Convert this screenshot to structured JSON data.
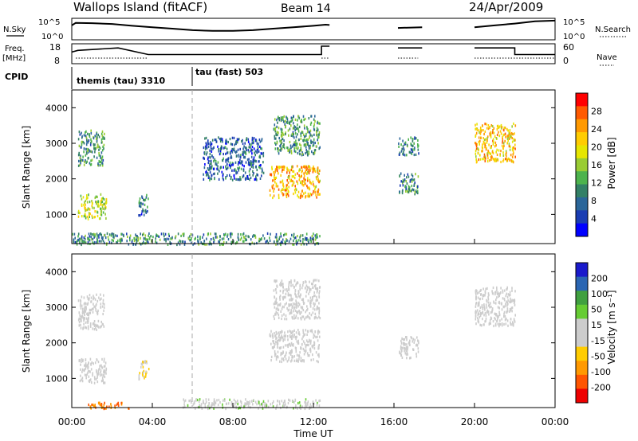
{
  "header": {
    "station": "Wallops Island (fitACF)",
    "beam": "Beam 14",
    "date": "24/Apr/2009"
  },
  "panels": {
    "nsky_label": "N.Sky",
    "nsky_ticks": [
      "10^5",
      "10^0"
    ],
    "nsearch_label": "N.Search",
    "nsearch_ticks": [
      "10^5",
      "10^0"
    ],
    "freq_label_line1": "Freq.",
    "freq_label_line2": "[MHz]",
    "freq_ticks": [
      "18",
      "8"
    ],
    "nave_label": "Nave",
    "nave_ticks": [
      "60",
      "0"
    ],
    "cpid_label": "CPID",
    "cpid_segments": [
      {
        "label": "themis (tau) 3310",
        "start_h": 0,
        "end_h": 6.0
      },
      {
        "label": "tau (fast) 503",
        "start_h": 6.0,
        "end_h": 24
      }
    ]
  },
  "axes": {
    "y_label": "Slant Range [km]",
    "y_ticks": [
      1000,
      2000,
      3000,
      4000
    ],
    "x_label": "Time UT",
    "x_ticks": [
      "00:00",
      "04:00",
      "08:00",
      "12:00",
      "16:00",
      "20:00",
      "00:00"
    ]
  },
  "colorbars": {
    "power": {
      "label": "Power [dB]",
      "ticks": [
        "28",
        "24",
        "20",
        "16",
        "12",
        "8",
        "4"
      ],
      "colors": [
        "#ff0000",
        "#ff5a00",
        "#ff9900",
        "#ffcc00",
        "#e6e600",
        "#99cc33",
        "#4db34d",
        "#338066",
        "#2b6699",
        "#1a3db3",
        "#0000ff"
      ]
    },
    "velocity": {
      "label": "Velocity [m s⁻¹]",
      "ticks": [
        "200",
        "100",
        "50",
        "15",
        "-15",
        "-50",
        "-100",
        "-200"
      ],
      "colors": [
        "#1a1acc",
        "#2b66b3",
        "#40a040",
        "#66cc33",
        "#cccccc",
        "#cccccc",
        "#ffcc00",
        "#ff9900",
        "#ff5500",
        "#ee0000"
      ]
    }
  },
  "chart_data": [
    {
      "type": "line",
      "name": "N.Sky",
      "x_hours": [
        0,
        0.2,
        1,
        2,
        3,
        4,
        5,
        6,
        7,
        8,
        9,
        10,
        11,
        12,
        12.6,
        12.8,
        16.2,
        17.4,
        20.0,
        21,
        22,
        23,
        24
      ],
      "values_log10": [
        3.5,
        4.2,
        4.1,
        3.9,
        3.4,
        3.0,
        2.6,
        2.2,
        2.0,
        2.0,
        2.2,
        2.6,
        3.0,
        3.4,
        3.7,
        3.6,
        2.8,
        3.0,
        3.0,
        3.5,
        4.0,
        4.6,
        4.8
      ]
    },
    {
      "type": "line",
      "name": "Freq.",
      "x_hours": [
        0,
        0.3,
        2.3,
        3.8,
        3.8,
        12.4,
        12.4,
        12.8,
        16.2,
        17.4,
        20.0,
        22.0,
        22.0,
        24
      ],
      "values_mhz": [
        14,
        15,
        16.5,
        12.5,
        12.5,
        12.5,
        17.5,
        17.5,
        16.5,
        16.5,
        16.5,
        16.5,
        12.5,
        12.5
      ]
    },
    {
      "type": "heatmap",
      "name": "Power",
      "x_range_hours": [
        0,
        24
      ],
      "y_range_km": [
        180,
        4500
      ],
      "zlim_db": [
        0,
        30
      ],
      "data_gaps_hours": [
        [
          12.8,
          16.2
        ],
        [
          17.4,
          20.0
        ]
      ],
      "regions": [
        {
          "t": [
            0.3,
            1.7
          ],
          "r": [
            900,
            1600
          ],
          "db": 16
        },
        {
          "t": [
            0.3,
            1.6
          ],
          "r": [
            2400,
            3400
          ],
          "db": 10
        },
        {
          "t": [
            3.3,
            3.8
          ],
          "r": [
            1000,
            1600
          ],
          "db": 7
        },
        {
          "t": [
            6.5,
            9.5
          ],
          "r": [
            2000,
            3200
          ],
          "db": 6
        },
        {
          "t": [
            9.8,
            12.3
          ],
          "r": [
            1500,
            2400
          ],
          "db": 22
        },
        {
          "t": [
            10.0,
            12.3
          ],
          "r": [
            2700,
            3800
          ],
          "db": 10
        },
        {
          "t": [
            16.2,
            17.2
          ],
          "r": [
            1600,
            2200
          ],
          "db": 9
        },
        {
          "t": [
            16.2,
            17.2
          ],
          "r": [
            2700,
            3200
          ],
          "db": 8
        },
        {
          "t": [
            20.0,
            22.0
          ],
          "r": [
            2500,
            3600
          ],
          "db": 21
        },
        {
          "t": [
            0.0,
            12.3
          ],
          "r": [
            180,
            500
          ],
          "db": 9
        }
      ]
    },
    {
      "type": "heatmap",
      "name": "Velocity",
      "x_range_hours": [
        0,
        24
      ],
      "y_range_km": [
        180,
        4500
      ],
      "zlim_ms": [
        -250,
        250
      ],
      "regions": [
        {
          "t": [
            0.3,
            1.7
          ],
          "r": [
            900,
            1600
          ],
          "v": -5
        },
        {
          "t": [
            0.3,
            1.6
          ],
          "r": [
            2400,
            3400
          ],
          "v": -5
        },
        {
          "t": [
            3.3,
            3.8
          ],
          "r": [
            1000,
            1600
          ],
          "v": -40
        },
        {
          "t": [
            9.8,
            12.3
          ],
          "r": [
            1500,
            2400
          ],
          "v": 0
        },
        {
          "t": [
            10.0,
            12.3
          ],
          "r": [
            2700,
            3800
          ],
          "v": 0
        },
        {
          "t": [
            16.2,
            17.2
          ],
          "r": [
            1600,
            2200
          ],
          "v": 0
        },
        {
          "t": [
            20.0,
            22.0
          ],
          "r": [
            2500,
            3600
          ],
          "v": 0
        },
        {
          "t": [
            5.5,
            12.3
          ],
          "r": [
            180,
            450
          ],
          "v": 30
        },
        {
          "t": [
            0.8,
            3.0
          ],
          "r": [
            180,
            350
          ],
          "v": -150
        }
      ]
    }
  ]
}
